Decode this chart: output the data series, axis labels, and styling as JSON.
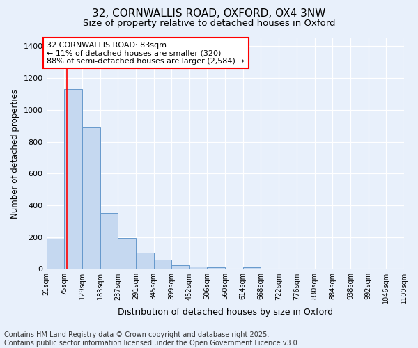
{
  "title1": "32, CORNWALLIS ROAD, OXFORD, OX4 3NW",
  "title2": "Size of property relative to detached houses in Oxford",
  "xlabel": "Distribution of detached houses by size in Oxford",
  "ylabel": "Number of detached properties",
  "bin_edges": [
    21,
    75,
    129,
    183,
    237,
    291,
    345,
    399,
    452,
    506,
    560,
    614,
    668,
    722,
    776,
    830,
    884,
    938,
    992,
    1046,
    1100
  ],
  "bar_heights": [
    190,
    1130,
    890,
    350,
    195,
    100,
    60,
    25,
    15,
    10,
    0,
    10,
    0,
    0,
    0,
    0,
    0,
    0,
    0,
    0
  ],
  "bar_color": "#c5d8f0",
  "bar_edge_color": "#6699cc",
  "vline_x": 83,
  "vline_color": "red",
  "ylim": [
    0,
    1450
  ],
  "yticks": [
    0,
    200,
    400,
    600,
    800,
    1000,
    1200,
    1400
  ],
  "annotation_text": "32 CORNWALLIS ROAD: 83sqm\n← 11% of detached houses are smaller (320)\n88% of semi-detached houses are larger (2,584) →",
  "annotation_box_facecolor": "white",
  "annotation_box_edgecolor": "red",
  "footer_line1": "Contains HM Land Registry data © Crown copyright and database right 2025.",
  "footer_line2": "Contains public sector information licensed under the Open Government Licence v3.0.",
  "bg_color": "#e8f0fb",
  "grid_color": "#c8d8f0",
  "title1_fontsize": 11,
  "title2_fontsize": 9.5,
  "ylabel_fontsize": 8.5,
  "xlabel_fontsize": 9,
  "annotation_fontsize": 8,
  "footer_fontsize": 7,
  "ytick_fontsize": 8,
  "xtick_fontsize": 7
}
